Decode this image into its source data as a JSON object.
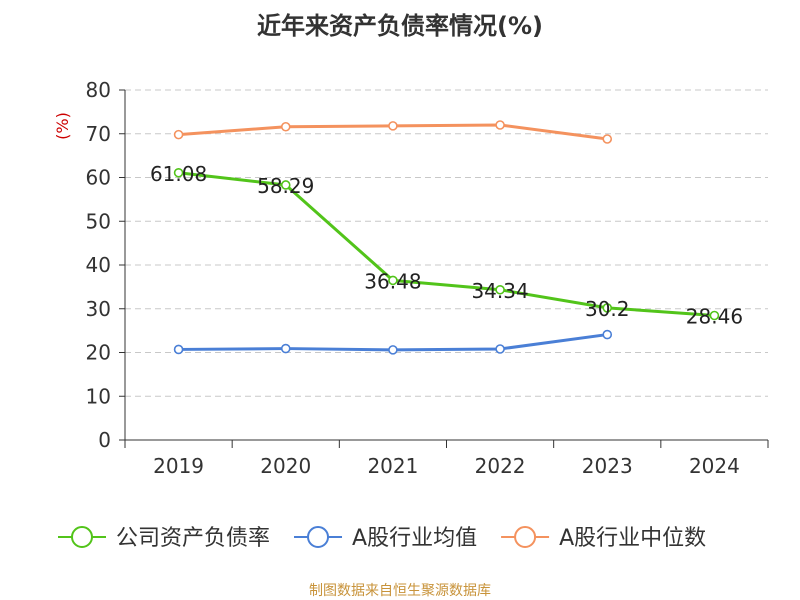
{
  "title": "近年来资产负债率情况(%)",
  "source": "制图数据来自恒生聚源数据库",
  "chart_data": {
    "type": "line",
    "title": "近年来资产负债率情况(%)",
    "ylabel": "(%)",
    "xlabel": "",
    "ylim": [
      0,
      80
    ],
    "yticks": [
      0,
      10,
      20,
      30,
      40,
      50,
      60,
      70,
      80
    ],
    "categories": [
      "2019",
      "2020",
      "2021",
      "2022",
      "2023",
      "2024"
    ],
    "grid": true,
    "legend_position": "bottom",
    "series": [
      {
        "name": "公司资产负债率",
        "color": "#52c41a",
        "values": [
          61.08,
          58.29,
          36.48,
          34.34,
          30.2,
          28.46
        ],
        "labels": [
          "61.08",
          "58.29",
          "36.48",
          "34.34",
          "30.2",
          "28.46"
        ]
      },
      {
        "name": "A股行业均值",
        "color": "#4a7fd6",
        "values": [
          20.7,
          20.9,
          20.6,
          20.8,
          24.1,
          null
        ]
      },
      {
        "name": "A股行业中位数",
        "color": "#f4925e",
        "values": [
          69.8,
          71.6,
          71.8,
          72.0,
          68.8,
          null
        ]
      }
    ]
  }
}
